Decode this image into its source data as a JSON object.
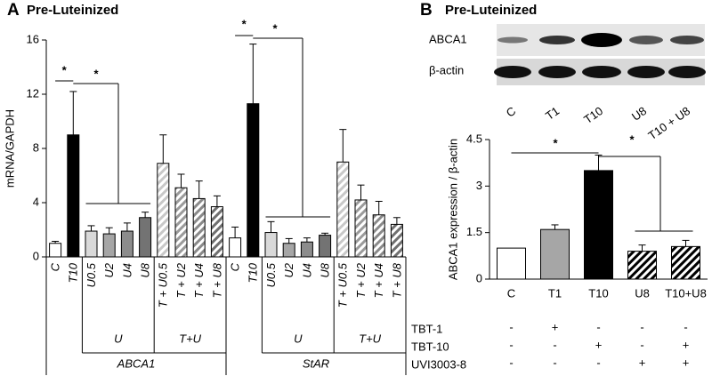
{
  "chart_data": [
    {
      "type": "bar",
      "panel": "A",
      "title": "Pre-Luteinized",
      "ylabel": "mRNA/GAPDH",
      "categories": [
        "C",
        "T10",
        "U0.5",
        "U2",
        "U4",
        "U8",
        "T + U0.5",
        "T + U2",
        "T + U4",
        "T + U8",
        "C",
        "T10",
        "U0.5",
        "U2",
        "U4",
        "U8",
        "T + U0.5",
        "T + U2",
        "T + U4",
        "T + U8"
      ],
      "values": [
        1.0,
        9.0,
        1.9,
        1.7,
        1.9,
        2.9,
        6.9,
        5.1,
        4.3,
        3.7,
        1.4,
        11.3,
        1.8,
        1.0,
        1.1,
        1.6,
        7.0,
        4.2,
        3.1,
        2.4
      ],
      "errors": [
        0.15,
        3.2,
        0.4,
        0.45,
        0.6,
        0.4,
        2.1,
        1.0,
        1.3,
        0.8,
        0.8,
        4.4,
        0.8,
        0.35,
        0.3,
        0.15,
        2.4,
        1.1,
        1.0,
        0.5
      ],
      "colors": [
        "#ffffff",
        "#000000",
        "#d9d9d9",
        "#a6a6a6",
        "#8c8c8c",
        "#737373",
        "#c8c8c8",
        "#9a9a9a",
        "#8a8a8a",
        "#707070",
        "#ffffff",
        "#000000",
        "#d9d9d9",
        "#a6a6a6",
        "#8c8c8c",
        "#737373",
        "#c8c8c8",
        "#9a9a9a",
        "#8a8a8a",
        "#707070"
      ],
      "hatched": [
        false,
        false,
        false,
        false,
        false,
        false,
        true,
        true,
        true,
        true,
        false,
        false,
        false,
        false,
        false,
        false,
        true,
        true,
        true,
        true
      ],
      "groups": [
        "U",
        "T+U",
        "U",
        "T+U"
      ],
      "genes": [
        "ABCA1",
        "StAR"
      ],
      "annotations": [
        "*",
        "*",
        "*",
        "*"
      ],
      "ylim": [
        0,
        16
      ],
      "yticks": [
        0,
        4,
        8,
        12,
        16
      ]
    },
    {
      "type": "bar",
      "panel": "B",
      "title": "Pre-Luteinized",
      "blot": {
        "rows": [
          "ABCA1",
          "β-actin"
        ],
        "lanes": [
          "C",
          "T1",
          "T10",
          "U8",
          "T10 + U8"
        ]
      },
      "ylabel": "ABCA1 expression / β-actin",
      "categories": [
        "C",
        "T1",
        "T10",
        "U8",
        "T10+U8"
      ],
      "values": [
        1.0,
        1.6,
        3.5,
        0.9,
        1.05
      ],
      "errors": [
        null,
        0.15,
        0.5,
        0.2,
        0.2
      ],
      "colors": [
        "#ffffff",
        "#a6a6a6",
        "#000000",
        "#000000",
        "#000000"
      ],
      "hatched": [
        false,
        false,
        false,
        true,
        true
      ],
      "treatments": [
        {
          "name": "TBT-1",
          "signs": [
            "-",
            "+",
            "-",
            "-",
            "-"
          ]
        },
        {
          "name": "TBT-10",
          "signs": [
            "-",
            "-",
            "+",
            "-",
            "+"
          ]
        },
        {
          "name": "UVI3003-8",
          "signs": [
            "-",
            "-",
            "-",
            "+",
            "+"
          ]
        }
      ],
      "annotations": [
        "*",
        "*"
      ],
      "ylim": [
        0,
        4.5
      ],
      "yticks": [
        0,
        1.5,
        3,
        4.5
      ]
    }
  ]
}
